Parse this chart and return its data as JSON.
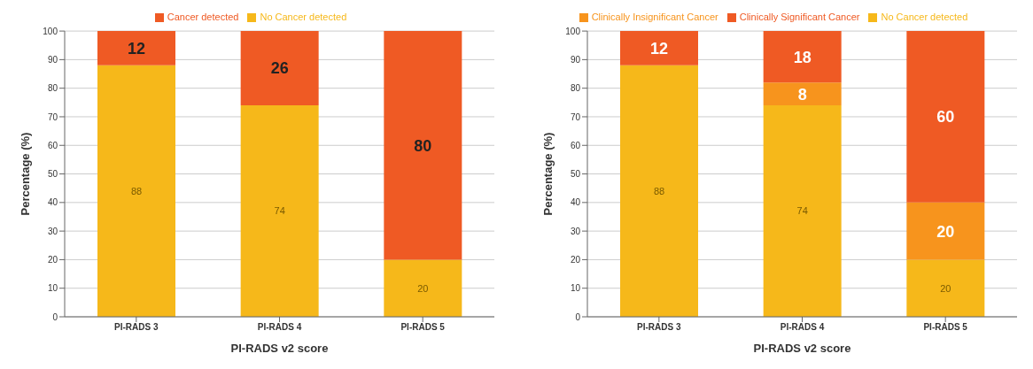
{
  "chart_data": [
    {
      "type": "bar",
      "stacked": true,
      "categories": [
        "PI-RADS 3",
        "PI-RADS 4",
        "PI-RADS 5"
      ],
      "xlabel": "PI-RADS v2 score",
      "ylabel": "Percentage (%)",
      "ylim": [
        0,
        100
      ],
      "yticks": [
        0,
        10,
        20,
        30,
        40,
        50,
        60,
        70,
        80,
        90,
        100
      ],
      "grid": "y",
      "legend": "top",
      "data_labels": true,
      "series": [
        {
          "name": "No Cancer detected",
          "color": "#f6b81a",
          "values": [
            88,
            74,
            20
          ]
        },
        {
          "name": "Cancer detected",
          "color": "#ef5a24",
          "values": [
            12,
            26,
            80
          ]
        }
      ]
    },
    {
      "type": "bar",
      "stacked": true,
      "categories": [
        "PI-RADS 3",
        "PI-RADS 4",
        "PI-RADS 5"
      ],
      "xlabel": "PI-RADS v2 score",
      "ylabel": "Percentage (%)",
      "ylim": [
        0,
        100
      ],
      "yticks": [
        0,
        10,
        20,
        30,
        40,
        50,
        60,
        70,
        80,
        90,
        100
      ],
      "grid": "y",
      "legend": "top",
      "series": [
        {
          "name": "No Cancer detected",
          "color": "#f6b81a",
          "values": [
            88,
            74,
            20
          ],
          "value_labels": [
            "88",
            "74",
            "20"
          ]
        },
        {
          "name": "Clinically Insignificant Cancer",
          "color": "#f7941d",
          "values": [
            0,
            8,
            20
          ],
          "value_labels": [
            null,
            "8",
            "20"
          ]
        },
        {
          "name": "Clinically Significant Cancer",
          "color": "#ef5a24",
          "values": [
            12,
            18,
            60
          ],
          "value_labels": [
            "12",
            "18",
            "60"
          ]
        }
      ]
    }
  ]
}
